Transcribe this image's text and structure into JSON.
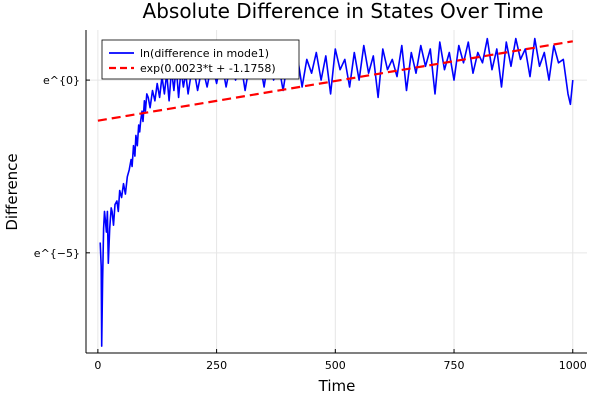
{
  "chart_data": {
    "type": "line",
    "title": "Absolute Difference in States Over Time",
    "xlabel": "Time",
    "ylabel": "Difference",
    "xlim": [
      -25,
      1030
    ],
    "ylim": [
      -7.9,
      1.45
    ],
    "x_ticks": [
      0,
      250,
      500,
      750,
      1000
    ],
    "x_tick_labels": [
      "0",
      "250",
      "500",
      "750",
      "1000"
    ],
    "y_ticks": [
      -5,
      0
    ],
    "y_tick_labels": [
      "e^{−5}",
      "e^{0}"
    ],
    "grid": true,
    "legend_position": "top-left",
    "series": [
      {
        "name": "ln(difference in mode1)",
        "style": "solid",
        "color": "#0000ff",
        "x": [
          5,
          7,
          8,
          10,
          12,
          14,
          16,
          18,
          20,
          22,
          25,
          28,
          30,
          33,
          36,
          40,
          43,
          46,
          50,
          54,
          58,
          62,
          66,
          70,
          72,
          75,
          78,
          80,
          83,
          86,
          88,
          90,
          93,
          95,
          98,
          100,
          103,
          106,
          110,
          115,
          120,
          125,
          130,
          135,
          140,
          145,
          150,
          155,
          160,
          165,
          170,
          175,
          180,
          185,
          190,
          200,
          210,
          220,
          230,
          240,
          250,
          260,
          270,
          280,
          290,
          300,
          310,
          320,
          330,
          340,
          350,
          360,
          370,
          380,
          390,
          400,
          410,
          420,
          430,
          440,
          450,
          460,
          470,
          480,
          490,
          500,
          510,
          520,
          530,
          540,
          550,
          560,
          570,
          580,
          590,
          600,
          610,
          620,
          630,
          640,
          650,
          660,
          670,
          680,
          690,
          700,
          710,
          720,
          730,
          740,
          750,
          760,
          770,
          780,
          790,
          800,
          810,
          820,
          830,
          840,
          850,
          860,
          870,
          880,
          890,
          900,
          910,
          920,
          930,
          940,
          950,
          960,
          970,
          980,
          990,
          995,
          1000
        ],
        "y": [
          -4.7,
          -5.4,
          -7.7,
          -5.8,
          -4.3,
          -3.8,
          -4.1,
          -4.4,
          -3.8,
          -5.3,
          -4.3,
          -3.7,
          -3.8,
          -4.2,
          -3.6,
          -3.5,
          -3.8,
          -3.2,
          -3.4,
          -3.0,
          -3.3,
          -2.8,
          -2.6,
          -2.3,
          -2.5,
          -1.9,
          -2.2,
          -1.6,
          -1.9,
          -1.3,
          -1.5,
          -1.2,
          -0.9,
          -1.2,
          -0.6,
          -0.9,
          -0.4,
          -0.5,
          -0.8,
          -0.3,
          -0.6,
          -0.1,
          -0.5,
          0.1,
          -0.4,
          0.2,
          -0.6,
          0.3,
          -0.3,
          0.4,
          -0.5,
          0.3,
          -0.2,
          0.2,
          -0.4,
          0.5,
          -0.3,
          0.4,
          -0.2,
          0.5,
          -0.1,
          0.6,
          -0.2,
          0.5,
          0.0,
          0.6,
          -0.3,
          0.5,
          0.1,
          0.6,
          -0.2,
          0.7,
          0.0,
          0.5,
          -0.3,
          0.6,
          0.1,
          0.7,
          -0.2,
          0.6,
          0.2,
          0.8,
          0.0,
          0.7,
          -0.4,
          0.9,
          0.3,
          0.6,
          -0.2,
          0.8,
          0.0,
          1.0,
          0.2,
          0.7,
          -0.5,
          0.9,
          0.3,
          0.6,
          0.1,
          1.0,
          -0.3,
          0.8,
          0.2,
          1.0,
          0.4,
          0.9,
          -0.4,
          1.1,
          0.3,
          0.8,
          0.0,
          1.0,
          0.5,
          1.1,
          0.2,
          0.8,
          0.5,
          1.2,
          0.3,
          0.9,
          -0.2,
          1.1,
          0.4,
          1.2,
          0.6,
          0.9,
          0.1,
          1.2,
          0.4,
          0.8,
          0.0,
          1.0,
          0.5,
          0.6,
          -0.4,
          -0.7,
          0.0
        ]
      },
      {
        "name": "exp(0.0023*t + -1.1758)",
        "style": "dashed",
        "color": "#ff0000",
        "x": [
          0,
          1000
        ],
        "y": [
          -1.1758,
          1.1242
        ]
      }
    ]
  }
}
